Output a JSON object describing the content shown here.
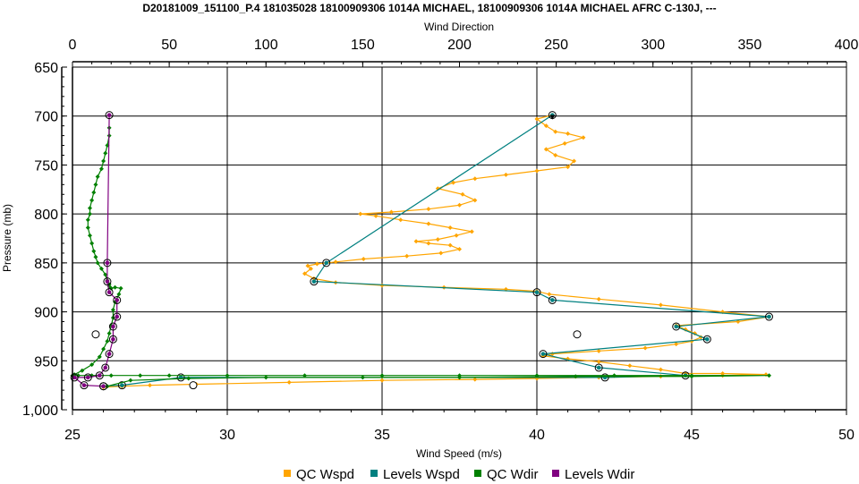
{
  "chart_data": {
    "type": "scatter",
    "title": "D20181009_151100_P.4 181035028 18100909306 1014A MICHAEL, 18100909306 1014A MICHAEL AFRC C-130J, ---",
    "xlabel": "Wind Speed (m/s)",
    "x2label": "Wind Direction",
    "ylabel": "Pressure (mb)",
    "xlim": [
      25,
      50
    ],
    "x2lim": [
      0,
      400
    ],
    "ylim": [
      650,
      1000
    ],
    "y_inverted": true,
    "x_ticks": [
      "25",
      "30",
      "35",
      "40",
      "45",
      "50"
    ],
    "x2_ticks": [
      "0",
      "50",
      "100",
      "150",
      "200",
      "250",
      "300",
      "350",
      "400"
    ],
    "y_ticks": [
      "650",
      "700",
      "750",
      "800",
      "850",
      "900",
      "950",
      "1,000"
    ],
    "grid": true,
    "legend_position": "bottom",
    "series": [
      {
        "name": "QC Wspd",
        "axis": "speed",
        "color": "#FFA500",
        "x": [
          40.5,
          40.0,
          40.3,
          40.6,
          41.0,
          41.5,
          40.9,
          40.3,
          40.6,
          41.2,
          41.0,
          40.0,
          39.0,
          38.0,
          37.3,
          36.8,
          37.6,
          38.0,
          37.5,
          36.5,
          35.3,
          34.3,
          34.8,
          35.6,
          36.5,
          37.2,
          37.9,
          37.4,
          36.8,
          36.1,
          36.5,
          37.2,
          37.5,
          36.9,
          35.8,
          34.4,
          33.5,
          32.9,
          32.6,
          32.7,
          32.5,
          32.8,
          33.5,
          35.0,
          37.0,
          39.0,
          40.0,
          40.4,
          42.0,
          44.0,
          46.0,
          47.5,
          46.5,
          44.5,
          44.8,
          45.1,
          45.3,
          45.0,
          44.5,
          43.5,
          42.0,
          40.5,
          40.2,
          41.0,
          42.0,
          43.0,
          44.0,
          44.8,
          46.0,
          47.4,
          46.0,
          44.0,
          42.0,
          40.0,
          38.0,
          35.0,
          32.0,
          29.0,
          27.5,
          26.6,
          26.0
        ],
        "y": [
          699,
          703,
          710,
          716,
          718,
          722,
          728,
          734,
          740,
          746,
          752,
          756,
          760,
          764,
          768,
          774,
          780,
          786,
          791,
          795,
          798,
          800,
          802,
          806,
          810,
          814,
          818,
          822,
          826,
          828,
          830,
          832,
          836,
          840,
          843,
          846,
          849,
          851,
          853,
          856,
          861,
          866,
          870,
          873,
          875,
          877,
          879,
          882,
          887,
          893,
          900,
          905,
          910,
          914,
          918,
          922,
          926,
          930,
          933,
          937,
          940,
          943,
          945,
          948,
          951,
          955,
          959,
          963,
          963,
          964,
          965,
          966,
          967,
          968,
          969,
          970,
          972,
          974,
          975,
          976,
          977
        ]
      },
      {
        "name": "Levels Wspd",
        "axis": "speed",
        "color": "#008080",
        "x": [
          40.5,
          33.2,
          32.8,
          40.0,
          40.5,
          47.5,
          44.5,
          45.5,
          40.2,
          42.0,
          44.8,
          42.2,
          28.5,
          26.6,
          26.0
        ],
        "y": [
          699,
          850,
          869,
          880,
          888,
          905,
          915,
          928,
          943,
          957,
          965,
          967,
          967,
          975,
          976
        ]
      },
      {
        "name": "QC Wdir",
        "axis": "direction",
        "color": "#008000",
        "x": [
          19,
          19,
          18,
          17,
          16,
          15,
          13,
          12,
          11,
          10,
          9,
          9,
          8,
          8,
          9,
          10,
          11,
          12,
          13,
          15,
          17,
          18,
          19,
          19,
          20,
          22,
          25,
          24,
          22,
          21,
          21,
          20,
          19,
          18,
          16,
          14,
          10,
          5,
          1,
          0,
          3,
          10,
          20,
          35,
          50,
          80,
          120,
          160,
          200,
          240,
          280,
          320,
          360,
          320,
          260,
          200,
          150,
          100,
          60,
          30,
          18
        ],
        "y": [
          712,
          720,
          730,
          738,
          746,
          754,
          762,
          770,
          778,
          786,
          794,
          800,
          806,
          814,
          822,
          830,
          838,
          844,
          850,
          856,
          862,
          868,
          872,
          874,
          876,
          875,
          876,
          882,
          890,
          898,
          906,
          914,
          922,
          930,
          938,
          946,
          954,
          960,
          964,
          965,
          965,
          965,
          965,
          965,
          965,
          965,
          965,
          965,
          965,
          965,
          965,
          965,
          965,
          966,
          966,
          967,
          967,
          967,
          968,
          970,
          976
        ]
      },
      {
        "name": "Levels Wdir",
        "axis": "direction",
        "color": "#800080",
        "x": [
          19,
          18,
          18,
          19,
          23,
          23,
          21,
          21,
          19,
          17,
          14,
          8,
          1,
          6,
          16
        ],
        "y": [
          699,
          850,
          869,
          880,
          888,
          905,
          915,
          928,
          943,
          957,
          965,
          967,
          967,
          975,
          976
        ]
      }
    ],
    "extra_markers": [
      {
        "axis": "speed",
        "x": 41.3,
        "y": 923
      },
      {
        "axis": "direction",
        "x": 12,
        "y": 923
      },
      {
        "axis": "speed",
        "x": 28.9,
        "y": 975
      }
    ]
  }
}
